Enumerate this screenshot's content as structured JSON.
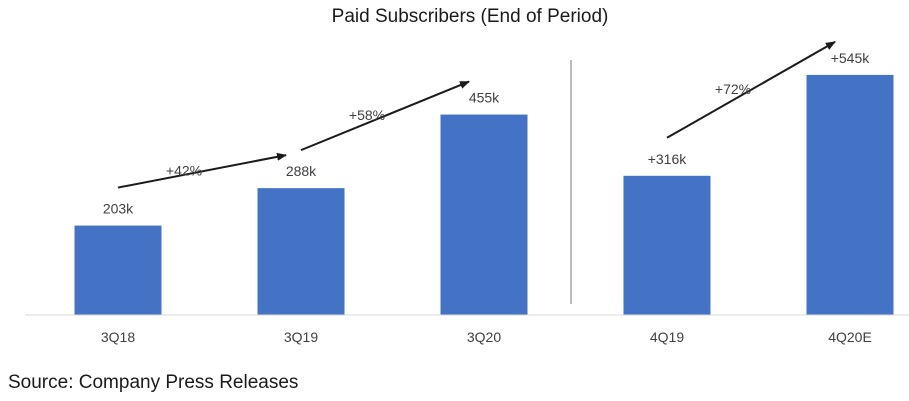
{
  "chart_data": {
    "type": "bar",
    "title": "Paid Subscribers (End of Period)",
    "xlabel": "",
    "ylabel": "",
    "ylim": [
      0,
      600
    ],
    "grid": false,
    "legend": "none",
    "categories": [
      "3Q18",
      "3Q19",
      "3Q20",
      "4Q19",
      "4Q20E"
    ],
    "values": [
      203,
      288,
      455,
      316,
      545
    ],
    "data_labels": [
      "203k",
      "288k",
      "455k",
      "+316k",
      "+545k"
    ],
    "bar_color": "#4472C4",
    "separator_after_index": 2,
    "growth_annotations": [
      {
        "label": "+42%",
        "from": 0,
        "to": 1
      },
      {
        "label": "+58%",
        "from": 1,
        "to": 2
      },
      {
        "label": "+72%",
        "from": 3,
        "to": 4
      }
    ]
  },
  "footer": {
    "source": "Source: Company Press Releases"
  }
}
